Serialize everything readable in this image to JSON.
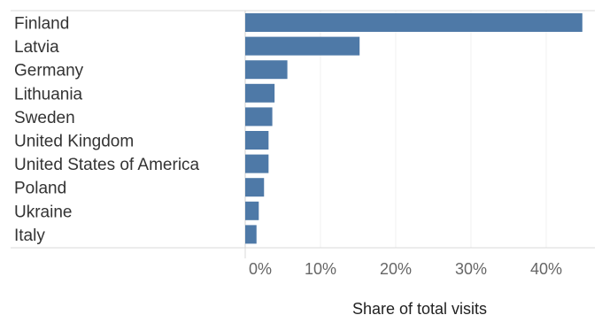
{
  "chart_data": {
    "type": "bar",
    "orientation": "horizontal",
    "categories": [
      "Finland",
      "Latvia",
      "Germany",
      "Lithuania",
      "Sweden",
      "United Kingdom",
      "United States of America",
      "Poland",
      "Ukraine",
      "Italy"
    ],
    "values": [
      44.8,
      15.2,
      5.6,
      3.9,
      3.6,
      3.1,
      3.1,
      2.5,
      1.8,
      1.5
    ],
    "x_ticks": [
      "0%",
      "10%",
      "20%",
      "30%",
      "40%"
    ],
    "xlim": [
      0,
      46
    ],
    "xlabel": "Share of total visits",
    "ylabel": "",
    "title": "",
    "bar_color": "#4e79a7",
    "grid": true
  }
}
